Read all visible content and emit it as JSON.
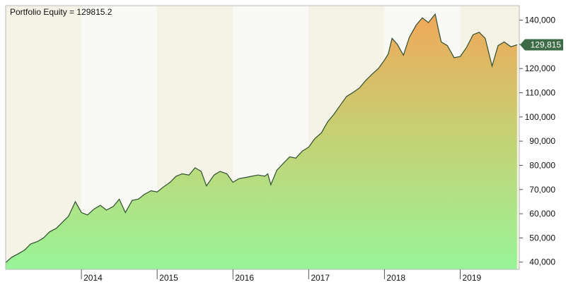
{
  "chart_data": {
    "type": "area",
    "title": "Portfolio Equity = 129815.2",
    "xlabel": "",
    "ylabel": "",
    "ylim": [
      37000,
      146000
    ],
    "y_ticks": [
      "140,000",
      "130,000",
      "120,000",
      "110,000",
      "100,000",
      "90,000",
      "80,000",
      "70,000",
      "60,000",
      "50,000",
      "40,000"
    ],
    "y_tick_values": [
      140000,
      130000,
      120000,
      110000,
      100000,
      90000,
      80000,
      70000,
      60000,
      50000,
      40000
    ],
    "x_ticks": [
      "2014",
      "2015",
      "2016",
      "2017",
      "2018",
      "2019"
    ],
    "x_tick_values": [
      2014,
      2015,
      2016,
      2017,
      2018,
      2019
    ],
    "xlim": [
      2013.0,
      2019.78
    ],
    "last_value_label": "129,815",
    "last_value": 129815,
    "grid": false,
    "legend": "none",
    "colors": {
      "line": "#2f4f2f",
      "fill_top": "#f0a85a",
      "fill_bottom": "#98f598",
      "band_alt": "#f5f2e6",
      "band": "#f9f9f6",
      "marker": "#3d6b45"
    },
    "x": [
      2013.0,
      2013.08,
      2013.17,
      2013.25,
      2013.33,
      2013.42,
      2013.5,
      2013.58,
      2013.67,
      2013.75,
      2013.83,
      2013.92,
      2014.0,
      2014.08,
      2014.17,
      2014.25,
      2014.33,
      2014.42,
      2014.5,
      2014.58,
      2014.67,
      2014.75,
      2014.83,
      2014.92,
      2015.0,
      2015.08,
      2015.17,
      2015.25,
      2015.33,
      2015.42,
      2015.5,
      2015.58,
      2015.65,
      2015.75,
      2015.83,
      2015.92,
      2016.0,
      2016.08,
      2016.17,
      2016.25,
      2016.33,
      2016.42,
      2016.46,
      2016.5,
      2016.58,
      2016.67,
      2016.75,
      2016.83,
      2016.92,
      2017.0,
      2017.08,
      2017.17,
      2017.25,
      2017.33,
      2017.42,
      2017.5,
      2017.58,
      2017.67,
      2017.75,
      2017.83,
      2017.92,
      2018.0,
      2018.05,
      2018.1,
      2018.17,
      2018.25,
      2018.33,
      2018.42,
      2018.5,
      2018.58,
      2018.67,
      2018.72,
      2018.75,
      2018.83,
      2018.92,
      2019.0,
      2019.08,
      2019.17,
      2019.25,
      2019.33,
      2019.42,
      2019.5,
      2019.58,
      2019.67,
      2019.75
    ],
    "values": [
      39800,
      42000,
      43500,
      45000,
      47500,
      48500,
      50000,
      52500,
      54000,
      56500,
      59000,
      65000,
      60500,
      59500,
      62000,
      63500,
      61500,
      63000,
      66000,
      60500,
      65500,
      66000,
      68000,
      69500,
      69000,
      71000,
      73000,
      75500,
      76500,
      76000,
      79000,
      77500,
      71500,
      76000,
      77500,
      76500,
      73000,
      74500,
      75000,
      75500,
      76000,
      75500,
      76500,
      72000,
      78000,
      81000,
      83500,
      83000,
      86000,
      87500,
      91000,
      93500,
      98000,
      101000,
      105000,
      108500,
      110000,
      112000,
      115000,
      117500,
      120000,
      123500,
      126000,
      132500,
      130000,
      125500,
      133000,
      138000,
      141000,
      139000,
      142500,
      135000,
      131000,
      129500,
      124500,
      125000,
      128500,
      134000,
      135000,
      132500,
      121000,
      129500,
      131000,
      129000,
      129815
    ]
  }
}
